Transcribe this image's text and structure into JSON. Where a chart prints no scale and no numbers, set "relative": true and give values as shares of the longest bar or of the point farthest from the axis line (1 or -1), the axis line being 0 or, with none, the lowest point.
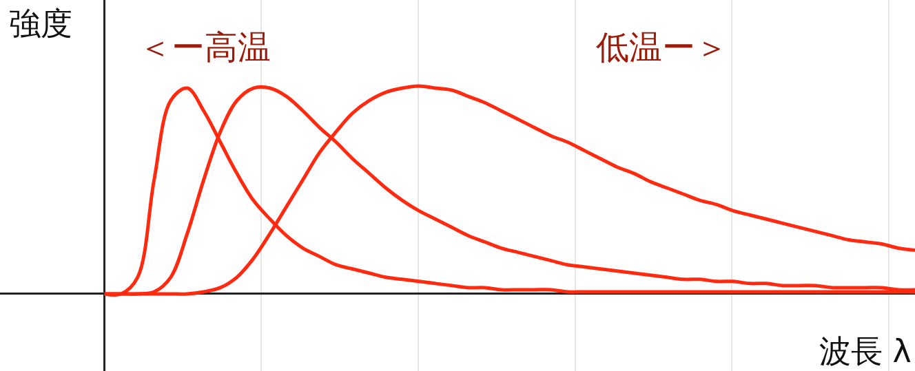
{
  "chart_data": {
    "type": "line",
    "relative": true,
    "xlabel": "波長 λ",
    "ylabel": "強度",
    "annotations": [
      "＜ー高温",
      "低温ー＞"
    ],
    "categories": [
      null,
      null,
      null,
      null,
      null,
      null,
      null,
      null,
      null,
      null,
      null,
      null,
      null,
      null,
      null,
      null,
      null,
      null,
      null,
      null,
      null,
      null,
      null,
      null,
      null,
      null,
      null,
      null,
      null,
      null,
      null,
      null,
      null,
      null,
      null,
      null,
      null,
      null,
      null,
      null,
      null,
      null,
      null,
      null,
      null,
      null,
      null,
      null,
      null,
      null
    ],
    "series": [
      {
        "color": "#ff2a10",
        "values": [
          0,
          0,
          0.08,
          0.55,
          0.93,
          0.99,
          0.88,
          0.73,
          0.58,
          0.45,
          0.36,
          0.28,
          0.22,
          0.18,
          0.14,
          0.12,
          0.1,
          0.08,
          0.07,
          0.06,
          0.05,
          0.04,
          0.03,
          0.03,
          0.02,
          0.02,
          0.02,
          0.02,
          0.01,
          0.01,
          0.01,
          0.01,
          0.01,
          0.01,
          0.01,
          0.01,
          0.01,
          0.01,
          0.01,
          0.01,
          0.01,
          0.01,
          0.01,
          0.01,
          0.01,
          0.01,
          0.01,
          0.01,
          0.01,
          0.01
        ]
      },
      {
        "color": "#ff2a10",
        "values": [
          0,
          0,
          0,
          0.01,
          0.08,
          0.29,
          0.55,
          0.78,
          0.93,
          0.99,
          0.99,
          0.95,
          0.88,
          0.8,
          0.73,
          0.65,
          0.58,
          0.51,
          0.45,
          0.4,
          0.36,
          0.32,
          0.28,
          0.25,
          0.22,
          0.2,
          0.18,
          0.16,
          0.14,
          0.13,
          0.12,
          0.11,
          0.1,
          0.09,
          0.08,
          0.07,
          0.07,
          0.06,
          0.06,
          0.05,
          0.05,
          0.04,
          0.04,
          0.04,
          0.03,
          0.03,
          0.03,
          0.03,
          0.02,
          0.02
        ]
      },
      {
        "color": "#ff2a10",
        "values": [
          0,
          0,
          0,
          0,
          0,
          0,
          0.01,
          0.03,
          0.08,
          0.17,
          0.29,
          0.42,
          0.55,
          0.68,
          0.78,
          0.87,
          0.93,
          0.97,
          0.99,
          1,
          0.99,
          0.98,
          0.95,
          0.92,
          0.88,
          0.84,
          0.8,
          0.76,
          0.73,
          0.69,
          0.65,
          0.61,
          0.58,
          0.54,
          0.51,
          0.48,
          0.45,
          0.43,
          0.4,
          0.38,
          0.36,
          0.34,
          0.32,
          0.3,
          0.28,
          0.26,
          0.25,
          0.24,
          0.22,
          0.21
        ]
      }
    ],
    "grid": "x"
  }
}
